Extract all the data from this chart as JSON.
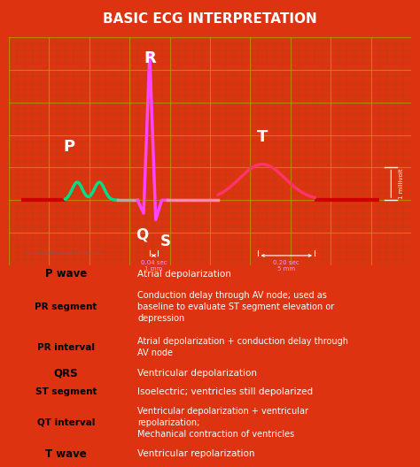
{
  "title": "BASIC ECG INTERPRETATION",
  "title_bg": "#cc1100",
  "title_color": "#ffffff",
  "outer_bg": "#dd3311",
  "ecg_bg": "#1a0a00",
  "grid_color_major": "#aaaa00",
  "grid_color_minor": "#666600",
  "watermark": "yourstudent+nurse.tumblr.com",
  "millivolt_label": "1 millivolt",
  "table_rows": [
    {
      "label": "P wave",
      "label_bg": "#44ddaa",
      "label_color": "#000000",
      "desc": "Atrial depolarization"
    },
    {
      "label": "PR segment",
      "label_bg": "#999999",
      "label_color": "#000000",
      "desc": "Conduction delay through AV node; used as\nbaseline to evaluate ST segment elevation or\ndepression"
    },
    {
      "label": "PR interval",
      "label_bg": "#33cc77",
      "label_color": "#000000",
      "desc": "Atrial depolarization + conduction delay through\nAV node"
    },
    {
      "label": "QRS",
      "label_bg": "#ff66ff",
      "label_color": "#000000",
      "desc": "Ventricular depolarization"
    },
    {
      "label": "ST segment",
      "label_bg": "#dd55cc",
      "label_color": "#000000",
      "desc": "Isoelectric; ventricles still depolarized"
    },
    {
      "label": "QT interval",
      "label_bg": "#cc44bb",
      "label_color": "#000000",
      "desc": "Ventricular depolarization + ventricular\nrepolarization;\nMechanical contraction of ventricles"
    },
    {
      "label": "T wave",
      "label_bg": "#ff4477",
      "label_color": "#000000",
      "desc": "Ventricular repolarization"
    }
  ],
  "row_heights": [
    1.0,
    2.6,
    1.8,
    1.0,
    1.0,
    2.4,
    1.0
  ]
}
